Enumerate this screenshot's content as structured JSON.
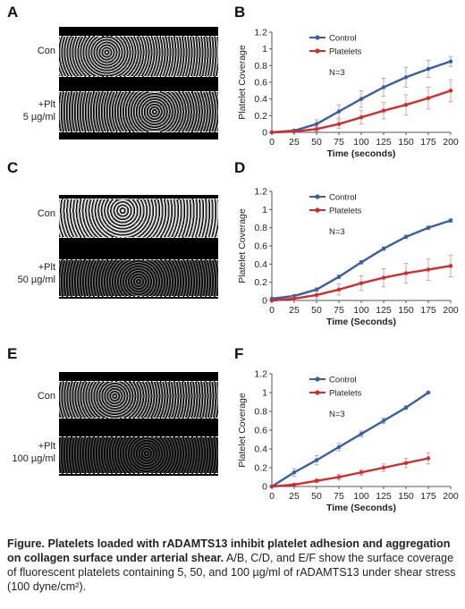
{
  "panels": {
    "A": {
      "letter": "A",
      "labels": [
        {
          "text": "Con"
        },
        {
          "text": "+Plt\n5 µg/ml"
        }
      ]
    },
    "C": {
      "letter": "C",
      "labels": [
        {
          "text": "Con"
        },
        {
          "text": "+Plt\n50 µg/ml"
        }
      ]
    },
    "E": {
      "letter": "E",
      "labels": [
        {
          "text": "Con"
        },
        {
          "text": "+Plt\n100 µg/ml"
        }
      ]
    }
  },
  "caption": {
    "bold": "Figure. Platelets loaded with rADAMTS13 inhibit platelet adhesion and aggregation on collagen surface under arterial shear.",
    "rest": " A/B, C/D, and E/F show the surface coverage of fluorescent platelets containing 5, 50, and 100 µg/ml of rADAMTS13 under shear stress (100 dyne/cm²)."
  },
  "colors": {
    "control": "#3a5da6",
    "platelets": "#d42a2a",
    "errbar_control": "#8a9ccc",
    "errbar_platelets": "#e08a8a"
  },
  "chart_data": [
    {
      "panel": "B",
      "type": "line",
      "xlabel": "Time (seconds)",
      "ylabel": "Platelet Coverage",
      "xlim": [
        0,
        200
      ],
      "ylim": [
        0,
        1.2
      ],
      "xticks": [
        0,
        25,
        50,
        75,
        100,
        125,
        150,
        175,
        200
      ],
      "yticks": [
        0,
        0.2,
        0.4,
        0.6,
        0.8,
        1,
        1.2
      ],
      "legend": "top-left",
      "annotation": "N=3",
      "x": [
        0,
        25,
        50,
        75,
        100,
        125,
        150,
        175,
        200
      ],
      "series": [
        {
          "name": "Control",
          "values": [
            0,
            0.02,
            0.1,
            0.25,
            0.4,
            0.54,
            0.66,
            0.76,
            0.85
          ],
          "error": [
            0,
            0.02,
            0.05,
            0.08,
            0.1,
            0.11,
            0.12,
            0.1,
            0.06
          ]
        },
        {
          "name": "Platelets",
          "values": [
            0,
            0.01,
            0.04,
            0.1,
            0.18,
            0.26,
            0.33,
            0.41,
            0.5
          ],
          "error": [
            0,
            0.01,
            0.03,
            0.05,
            0.08,
            0.1,
            0.12,
            0.13,
            0.13
          ]
        }
      ]
    },
    {
      "panel": "D",
      "type": "line",
      "xlabel": "Time (Seconds)",
      "ylabel": "Platelet Coverage",
      "xlim": [
        0,
        200
      ],
      "ylim": [
        0,
        1.2
      ],
      "xticks": [
        0,
        25,
        50,
        75,
        100,
        125,
        150,
        175,
        200
      ],
      "yticks": [
        0,
        0.2,
        0.4,
        0.6,
        0.8,
        1,
        1.2
      ],
      "legend": "top-left",
      "annotation": "N=3",
      "x": [
        0,
        25,
        50,
        75,
        100,
        125,
        150,
        175,
        200
      ],
      "series": [
        {
          "name": "Control",
          "values": [
            0.02,
            0.05,
            0.12,
            0.26,
            0.42,
            0.57,
            0.7,
            0.8,
            0.88
          ],
          "error": [
            0,
            0.01,
            0.02,
            0.02,
            0.02,
            0.02,
            0.02,
            0.02,
            0.02
          ]
        },
        {
          "name": "Platelets",
          "values": [
            0,
            0.02,
            0.06,
            0.12,
            0.19,
            0.25,
            0.3,
            0.34,
            0.38
          ],
          "error": [
            0,
            0.02,
            0.04,
            0.06,
            0.08,
            0.1,
            0.11,
            0.12,
            0.12
          ]
        }
      ]
    },
    {
      "panel": "F",
      "type": "line",
      "xlabel": "Time (Seconds)",
      "ylabel": "Platelet Coverage",
      "xlim": [
        0,
        200
      ],
      "ylim": [
        0,
        1.2
      ],
      "xticks": [
        0,
        25,
        50,
        75,
        100,
        125,
        150,
        175,
        200
      ],
      "yticks": [
        0,
        0.2,
        0.4,
        0.6,
        0.8,
        1,
        1.2
      ],
      "legend": "top-left",
      "annotation": "N=3",
      "x": [
        0,
        25,
        50,
        75,
        100,
        125,
        150,
        175
      ],
      "series": [
        {
          "name": "Control",
          "values": [
            0,
            0.15,
            0.28,
            0.42,
            0.56,
            0.7,
            0.84,
            1.0
          ],
          "error": [
            0,
            0.04,
            0.05,
            0.04,
            0.03,
            0.03,
            0.02,
            0.01
          ]
        },
        {
          "name": "Platelets",
          "values": [
            0,
            0.02,
            0.06,
            0.1,
            0.15,
            0.2,
            0.25,
            0.3
          ],
          "error": [
            0,
            0.01,
            0.02,
            0.03,
            0.03,
            0.04,
            0.05,
            0.06
          ]
        }
      ]
    }
  ]
}
